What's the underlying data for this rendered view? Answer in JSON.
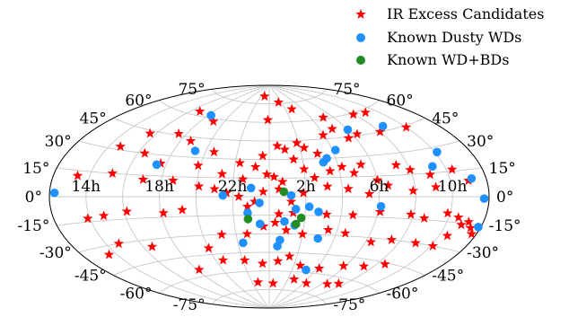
{
  "chart_data": {
    "type": "scatter",
    "projection": "aitoff",
    "grid": true,
    "legend_position": "top-right",
    "title": "",
    "xlabel": "",
    "ylabel": "",
    "ra_tick_labels": [
      {
        "text": "14h",
        "lon_deg": -150
      },
      {
        "text": "18h",
        "lon_deg": -90
      },
      {
        "text": "22h",
        "lon_deg": -30
      },
      {
        "text": "2h",
        "lon_deg": 30
      },
      {
        "text": "6h",
        "lon_deg": 90
      },
      {
        "text": "10h",
        "lon_deg": 150
      }
    ],
    "dec_tick_labels": [
      "-75°",
      "-60°",
      "-45°",
      "-30°",
      "-15°",
      "0°",
      "15°",
      "30°",
      "45°",
      "60°",
      "75°"
    ],
    "dec_tick_values": [
      -75,
      -60,
      -45,
      -30,
      -15,
      0,
      15,
      30,
      45,
      60,
      75
    ],
    "series": [
      {
        "name": "IR Excess Candidates",
        "marker": "star",
        "color": "#ff0000",
        "points": [
          [
            -17,
            81
          ],
          [
            -108,
            63
          ],
          [
            -74,
            58
          ],
          [
            -2,
            62
          ],
          [
            23,
            76
          ],
          [
            42,
            70
          ],
          [
            77,
            61
          ],
          [
            119,
            59
          ],
          [
            136,
            58
          ],
          [
            -126,
            43
          ],
          [
            -98,
            46
          ],
          [
            -80,
            42
          ],
          [
            -52,
            35
          ],
          [
            -26,
            27
          ],
          [
            -6,
            33
          ],
          [
            8,
            41
          ],
          [
            15,
            38
          ],
          [
            28,
            43
          ],
          [
            34,
            39
          ],
          [
            45,
            34
          ],
          [
            59,
            48
          ],
          [
            74,
            52
          ],
          [
            83,
            44
          ],
          [
            95,
            46
          ],
          [
            120,
            45
          ],
          [
            150,
            44
          ],
          [
            -140,
            32
          ],
          [
            -114,
            30
          ],
          [
            -95,
            24
          ],
          [
            -62,
            24
          ],
          [
            -40,
            18
          ],
          [
            -22,
            14
          ],
          [
            -12,
            24
          ],
          [
            -2,
            18
          ],
          [
            4,
            16
          ],
          [
            11,
            12
          ],
          [
            22,
            30
          ],
          [
            30,
            22
          ],
          [
            38,
            15
          ],
          [
            52,
            20
          ],
          [
            63,
            23
          ],
          [
            72,
            18
          ],
          [
            80,
            24
          ],
          [
            90,
            12
          ],
          [
            110,
            22
          ],
          [
            120,
            18
          ],
          [
            135,
            14
          ],
          [
            155,
            16
          ],
          [
            165,
            9
          ],
          [
            -160,
            12
          ],
          [
            -132,
            15
          ],
          [
            -105,
            12
          ],
          [
            -80,
            12
          ],
          [
            -58,
            8
          ],
          [
            -45,
            6
          ],
          [
            -35,
            3
          ],
          [
            -25,
            0
          ],
          [
            -12,
            -4
          ],
          [
            -5,
            4
          ],
          [
            8,
            6
          ],
          [
            18,
            -4
          ],
          [
            28,
            3
          ],
          [
            48,
            8
          ],
          [
            65,
            6
          ],
          [
            82,
            2
          ],
          [
            98,
            8
          ],
          [
            118,
            4
          ],
          [
            137,
            6
          ],
          [
            -152,
            -13
          ],
          [
            -138,
            -12
          ],
          [
            -118,
            -10
          ],
          [
            -88,
            -12
          ],
          [
            -72,
            -10
          ],
          [
            -18,
            -8
          ],
          [
            8,
            -14
          ],
          [
            20,
            -13
          ],
          [
            48,
            -14
          ],
          [
            70,
            -14
          ],
          [
            92,
            -11
          ],
          [
            118,
            -12
          ],
          [
            130,
            -14
          ],
          [
            148,
            -10
          ],
          [
            158,
            -12
          ],
          [
            163,
            -16
          ],
          [
            168,
            -14
          ],
          [
            172,
            -17
          ],
          [
            176,
            -20
          ],
          [
            -157,
            -35
          ],
          [
            -139,
            -30
          ],
          [
            -112,
            -35
          ],
          [
            -60,
            -40
          ],
          [
            -43,
            -30
          ],
          [
            -20,
            -30
          ],
          [
            -5,
            -24
          ],
          [
            5,
            -21
          ],
          [
            15,
            -27
          ],
          [
            30,
            -30
          ],
          [
            52,
            -26
          ],
          [
            68,
            -28
          ],
          [
            95,
            -33
          ],
          [
            112,
            -30
          ],
          [
            135,
            -30
          ],
          [
            152,
            -30
          ],
          [
            157,
            -23
          ],
          [
            -88,
            -55
          ],
          [
            -52,
            -50
          ],
          [
            -28,
            -51
          ],
          [
            -8,
            -54
          ],
          [
            10,
            -52
          ],
          [
            22,
            -48
          ],
          [
            38,
            -55
          ],
          [
            63,
            -56
          ],
          [
            88,
            -52
          ],
          [
            110,
            -50
          ],
          [
            128,
            -46
          ],
          [
            -20,
            -69
          ],
          [
            7,
            -70
          ],
          [
            40,
            -66
          ],
          [
            65,
            -68
          ],
          [
            98,
            -66
          ],
          [
            112,
            -64
          ]
        ]
      },
      {
        "name": "Known Dusty WDs",
        "marker": "circle",
        "color": "#1e90ff",
        "points": [
          [
            -176,
            2
          ],
          [
            -86,
            62
          ],
          [
            -70,
            35
          ],
          [
            -98,
            23
          ],
          [
            -38,
            1
          ],
          [
            -15,
            7
          ],
          [
            -8,
            -5
          ],
          [
            18,
            1
          ],
          [
            22,
            -10
          ],
          [
            33,
            -8
          ],
          [
            41,
            -12
          ],
          [
            48,
            27
          ],
          [
            52,
            30
          ],
          [
            63,
            36
          ],
          [
            90,
            50
          ],
          [
            92,
            -7
          ],
          [
            130,
            48
          ],
          [
            140,
            19
          ],
          [
            152,
            27
          ],
          [
            168,
            10
          ],
          [
            176,
            -1
          ],
          [
            178,
            -16
          ],
          [
            -18,
            -13
          ],
          [
            -8,
            -22
          ],
          [
            13,
            -20
          ],
          [
            22,
            -23
          ],
          [
            -25,
            -37
          ],
          [
            8,
            -40
          ],
          [
            10,
            -35
          ],
          [
            45,
            -33
          ],
          [
            48,
            -58
          ]
        ]
      },
      {
        "name": "Known WD+BDs",
        "marker": "circle",
        "color": "#228b22",
        "points": [
          [
            12,
            4
          ],
          [
            -18,
            -18
          ],
          [
            27,
            -17
          ],
          [
            23,
            -22
          ]
        ]
      }
    ]
  }
}
